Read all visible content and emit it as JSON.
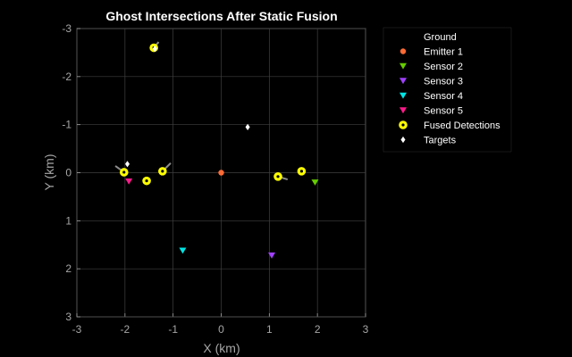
{
  "chart_data": {
    "type": "scatter",
    "title": "Ghost Intersections After Static Fusion",
    "xlabel": "X (km)",
    "ylabel": "Y (km)",
    "xlim": [
      -3,
      3
    ],
    "ylim": [
      -3,
      3
    ],
    "y_reversed": true,
    "grid": true,
    "legend_position": "top-right-outside",
    "xticks": [
      -3,
      -2,
      -1,
      0,
      1,
      2,
      3
    ],
    "yticks": [
      -3,
      -2,
      -1,
      0,
      1,
      2,
      3
    ],
    "colors": {
      "axes_bg": "#000000",
      "figure_bg": "#000000",
      "grid": "#404040",
      "axis_text": "#a6a6a6",
      "title": "#ffffff",
      "legend_bg": "#000000",
      "legend_text": "#ffffff"
    },
    "series": [
      {
        "name": "Ground",
        "marker": "none",
        "color": "#ffffff",
        "points": []
      },
      {
        "name": "Emitter 1",
        "marker": "circle",
        "color": "#ff6b35",
        "points": [
          [
            0.0,
            0.0
          ]
        ]
      },
      {
        "name": "Sensor 2",
        "marker": "triangle-down",
        "color": "#66cc00",
        "points": [
          [
            1.95,
            0.2
          ]
        ]
      },
      {
        "name": "Sensor 3",
        "marker": "triangle-down",
        "color": "#a040ff",
        "points": [
          [
            1.05,
            1.72
          ]
        ]
      },
      {
        "name": "Sensor 4",
        "marker": "triangle-down",
        "color": "#00e5e5",
        "points": [
          [
            -0.8,
            1.62
          ]
        ]
      },
      {
        "name": "Sensor 5",
        "marker": "triangle-down",
        "color": "#ff1a8c",
        "points": [
          [
            -1.92,
            0.18
          ]
        ]
      },
      {
        "name": "Fused Detections",
        "marker": "circle-large",
        "color": "#ffff00",
        "points": [
          [
            -1.4,
            -2.6
          ],
          [
            -2.02,
            -0.01
          ],
          [
            -1.55,
            0.17
          ],
          [
            -1.22,
            -0.03
          ],
          [
            1.18,
            0.08
          ],
          [
            1.67,
            -0.03
          ]
        ]
      },
      {
        "name": "Targets",
        "marker": "diamond",
        "color": "#ffffff",
        "points": [
          [
            -1.38,
            -2.58
          ],
          [
            0.55,
            -0.95
          ],
          [
            -1.95,
            -0.18
          ]
        ]
      }
    ],
    "velocity_lines": [
      {
        "from": [
          -1.4,
          -2.6
        ],
        "to": [
          -1.3,
          -2.72
        ]
      },
      {
        "from": [
          -2.02,
          -0.01
        ],
        "to": [
          -2.2,
          -0.14
        ]
      },
      {
        "from": [
          -1.22,
          -0.03
        ],
        "to": [
          -1.05,
          -0.2
        ]
      },
      {
        "from": [
          1.18,
          0.08
        ],
        "to": [
          1.38,
          0.14
        ]
      }
    ]
  }
}
